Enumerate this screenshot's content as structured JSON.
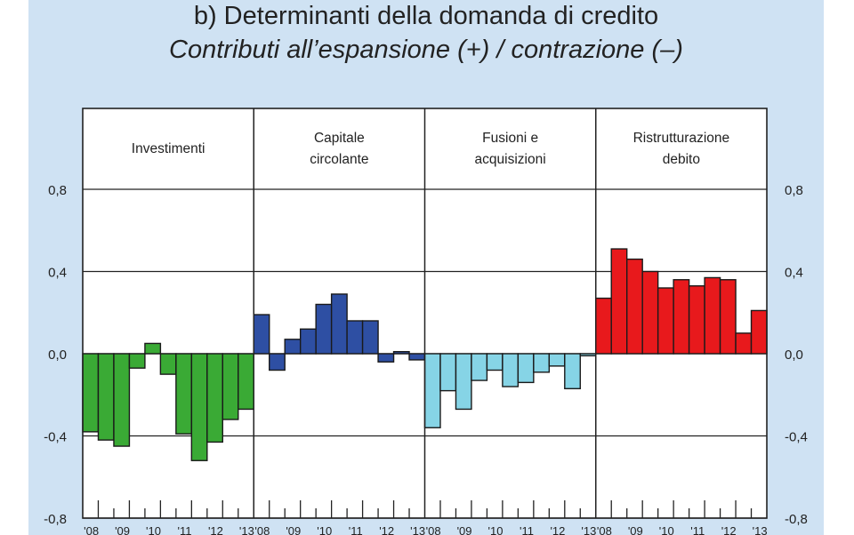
{
  "chart_data": {
    "type": "bar",
    "title": "b) Determinanti della domanda di credito",
    "subtitle": "Contributi all’espansione (+) / contrazione (–)",
    "ylim": [
      -0.8,
      0.8
    ],
    "y_ticks": [
      "0,8",
      "0,4",
      "0,0",
      "-0,4",
      "-0,8"
    ],
    "y_tick_values": [
      0.8,
      0.4,
      0.0,
      -0.4,
      -0.8
    ],
    "x_tick_labels": [
      "'08",
      "'09",
      "'10",
      "'11",
      "'12",
      "'13"
    ],
    "grid": true,
    "panels": [
      {
        "name": [
          "Investimenti"
        ],
        "color": "#3aaa35",
        "values": [
          -0.38,
          -0.42,
          -0.45,
          -0.07,
          0.05,
          -0.1,
          -0.39,
          -0.52,
          -0.43,
          -0.32,
          -0.27
        ]
      },
      {
        "name": [
          "Capitale",
          "circolante"
        ],
        "color": "#2e4fa3",
        "values": [
          0.19,
          -0.08,
          0.07,
          0.12,
          0.24,
          0.29,
          0.16,
          0.16,
          -0.04,
          0.01,
          -0.03
        ]
      },
      {
        "name": [
          "Fusioni e",
          "acquisizioni"
        ],
        "color": "#86d4e6",
        "values": [
          -0.36,
          -0.18,
          -0.27,
          -0.13,
          -0.08,
          -0.16,
          -0.14,
          -0.09,
          -0.06,
          -0.17,
          -0.01
        ]
      },
      {
        "name": [
          "Ristrutturazione",
          "debito"
        ],
        "color": "#e8191c",
        "values": [
          0.27,
          0.51,
          0.46,
          0.4,
          0.32,
          0.36,
          0.33,
          0.37,
          0.36,
          0.1,
          0.21
        ]
      }
    ]
  }
}
